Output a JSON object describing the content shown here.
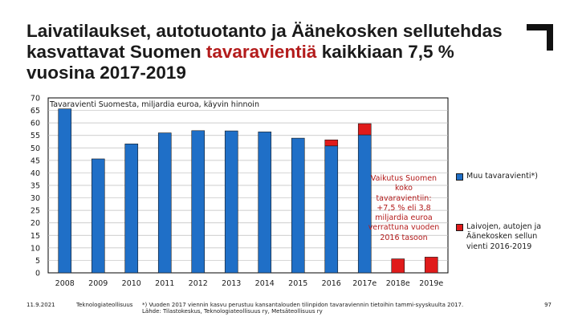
{
  "title": {
    "part1": "Laivatilaukset, autotuotanto ja Äänekosken sellutehdas kasvattavat Suomen ",
    "accent": "tavaravientiä",
    "part2": " kaikkiaan 7,5 % vuosina 2017-2019"
  },
  "colors": {
    "blue": "#1f6fc7",
    "red": "#e01b1b",
    "accent_text": "#b31b1b"
  },
  "chart_data": {
    "type": "bar",
    "subtitle": "Tavaravienti Suomesta, miljardia euroa, käyvin hinnoin",
    "categories": [
      "2008",
      "2009",
      "2010",
      "2011",
      "2012",
      "2013",
      "2014",
      "2015",
      "2016",
      "2017e",
      "2018e",
      "2019e"
    ],
    "series": [
      {
        "name": "Muu tavaravienti*)",
        "color": "#1f6fc7",
        "values": [
          65.6,
          45.6,
          51.6,
          56.0,
          56.9,
          56.8,
          56.4,
          53.9,
          50.8,
          55.2,
          0,
          0
        ]
      },
      {
        "name": "Laivojen, autojen ja Äänekosken sellun vienti 2016-2019",
        "color": "#e01b1b",
        "values": [
          0,
          0,
          0,
          0,
          0,
          0,
          0,
          0,
          2.4,
          4.5,
          5.6,
          6.3
        ]
      }
    ],
    "ylim": [
      0,
      70
    ],
    "yticks": [
      "0",
      "5",
      "10",
      "15",
      "20",
      "25",
      "30",
      "35",
      "40",
      "45",
      "50",
      "55",
      "60",
      "65",
      "70"
    ],
    "grid": true,
    "stacked": true,
    "legend_position": "right",
    "annotation": "Vaikutus Suomen koko tavaravientiin: +7,5 % eli 3,8 miljardia euroa verrattuna vuoden 2016 tasoon"
  },
  "legend": [
    {
      "label": "Muu tavaravienti*)",
      "color": "#1f6fc7"
    },
    {
      "label": "Laivojen, autojen ja Äänekosken sellun vienti 2016-2019",
      "color": "#e01b1b"
    }
  ],
  "footer": {
    "date": "11.9.2021",
    "org": "Teknologiateollisuus",
    "note1": "*) Vuoden 2017 viennin kasvu perustuu kansantalouden tilinpidon tavaraviennin tietoihin tammi-syyskuulta 2017.",
    "note2": "Lähde: Tilastokeskus, Teknologiateollisuus ry, Metsäteollisuus ry",
    "page": "97"
  }
}
